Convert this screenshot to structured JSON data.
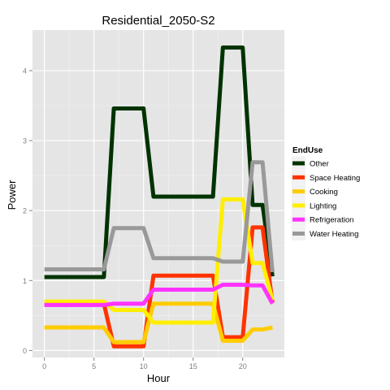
{
  "chart_data": {
    "type": "line",
    "title": "Residential_2050-S2",
    "xlabel": "Hour",
    "ylabel": "Power",
    "xlim": [
      -1.2,
      24.2
    ],
    "ylim": [
      -0.1,
      4.58
    ],
    "x_ticks": [
      0,
      5,
      10,
      15,
      20
    ],
    "x_tick_labels": [
      "0",
      "5",
      "10",
      "15",
      "20"
    ],
    "y_ticks": [
      0,
      1,
      2,
      3,
      4
    ],
    "y_tick_labels": [
      "0",
      "1",
      "2",
      "3",
      "4"
    ],
    "grid": true,
    "legend": {
      "title": "EndUse",
      "placement": "right"
    },
    "x": [
      0,
      1,
      2,
      3,
      4,
      5,
      6,
      7,
      8,
      9,
      10,
      11,
      12,
      13,
      14,
      15,
      16,
      17,
      18,
      19,
      20,
      21,
      22,
      23
    ],
    "series": [
      {
        "name": "Other",
        "color": "#003300",
        "values": [
          1.05,
          1.05,
          1.05,
          1.05,
          1.05,
          1.05,
          1.05,
          3.46,
          3.46,
          3.46,
          3.46,
          2.2,
          2.2,
          2.2,
          2.2,
          2.2,
          2.2,
          2.2,
          4.33,
          4.33,
          4.33,
          2.08,
          2.08,
          1.06
        ]
      },
      {
        "name": "Space Heating",
        "color": "#ff3300",
        "values": [
          0.67,
          0.67,
          0.67,
          0.67,
          0.67,
          0.67,
          0.67,
          0.06,
          0.06,
          0.06,
          0.06,
          1.07,
          1.07,
          1.07,
          1.07,
          1.07,
          1.07,
          1.07,
          0.19,
          0.19,
          0.19,
          1.76,
          1.76,
          0.68
        ]
      },
      {
        "name": "Cooking",
        "color": "#ffcc00",
        "values": [
          0.33,
          0.33,
          0.33,
          0.33,
          0.33,
          0.33,
          0.33,
          0.12,
          0.12,
          0.12,
          0.12,
          0.67,
          0.67,
          0.67,
          0.67,
          0.67,
          0.67,
          0.67,
          0.14,
          0.14,
          0.14,
          0.3,
          0.3,
          0.33
        ]
      },
      {
        "name": "Lighting",
        "color": "#ffee00",
        "values": [
          0.7,
          0.7,
          0.7,
          0.7,
          0.7,
          0.7,
          0.7,
          0.58,
          0.58,
          0.58,
          0.58,
          0.4,
          0.4,
          0.4,
          0.4,
          0.4,
          0.4,
          0.4,
          2.16,
          2.16,
          2.16,
          1.25,
          1.25,
          0.72
        ]
      },
      {
        "name": "Refrigeration",
        "color": "#ff33ff",
        "values": [
          0.65,
          0.65,
          0.65,
          0.65,
          0.65,
          0.65,
          0.65,
          0.67,
          0.67,
          0.67,
          0.67,
          0.87,
          0.87,
          0.87,
          0.87,
          0.87,
          0.87,
          0.87,
          0.94,
          0.94,
          0.94,
          0.93,
          0.93,
          0.67
        ]
      },
      {
        "name": "Water Heating",
        "color": "#999999",
        "values": [
          1.16,
          1.16,
          1.16,
          1.16,
          1.16,
          1.16,
          1.16,
          1.75,
          1.75,
          1.75,
          1.75,
          1.32,
          1.32,
          1.32,
          1.32,
          1.32,
          1.32,
          1.32,
          1.27,
          1.27,
          1.27,
          2.69,
          2.69,
          1.12
        ]
      }
    ]
  }
}
